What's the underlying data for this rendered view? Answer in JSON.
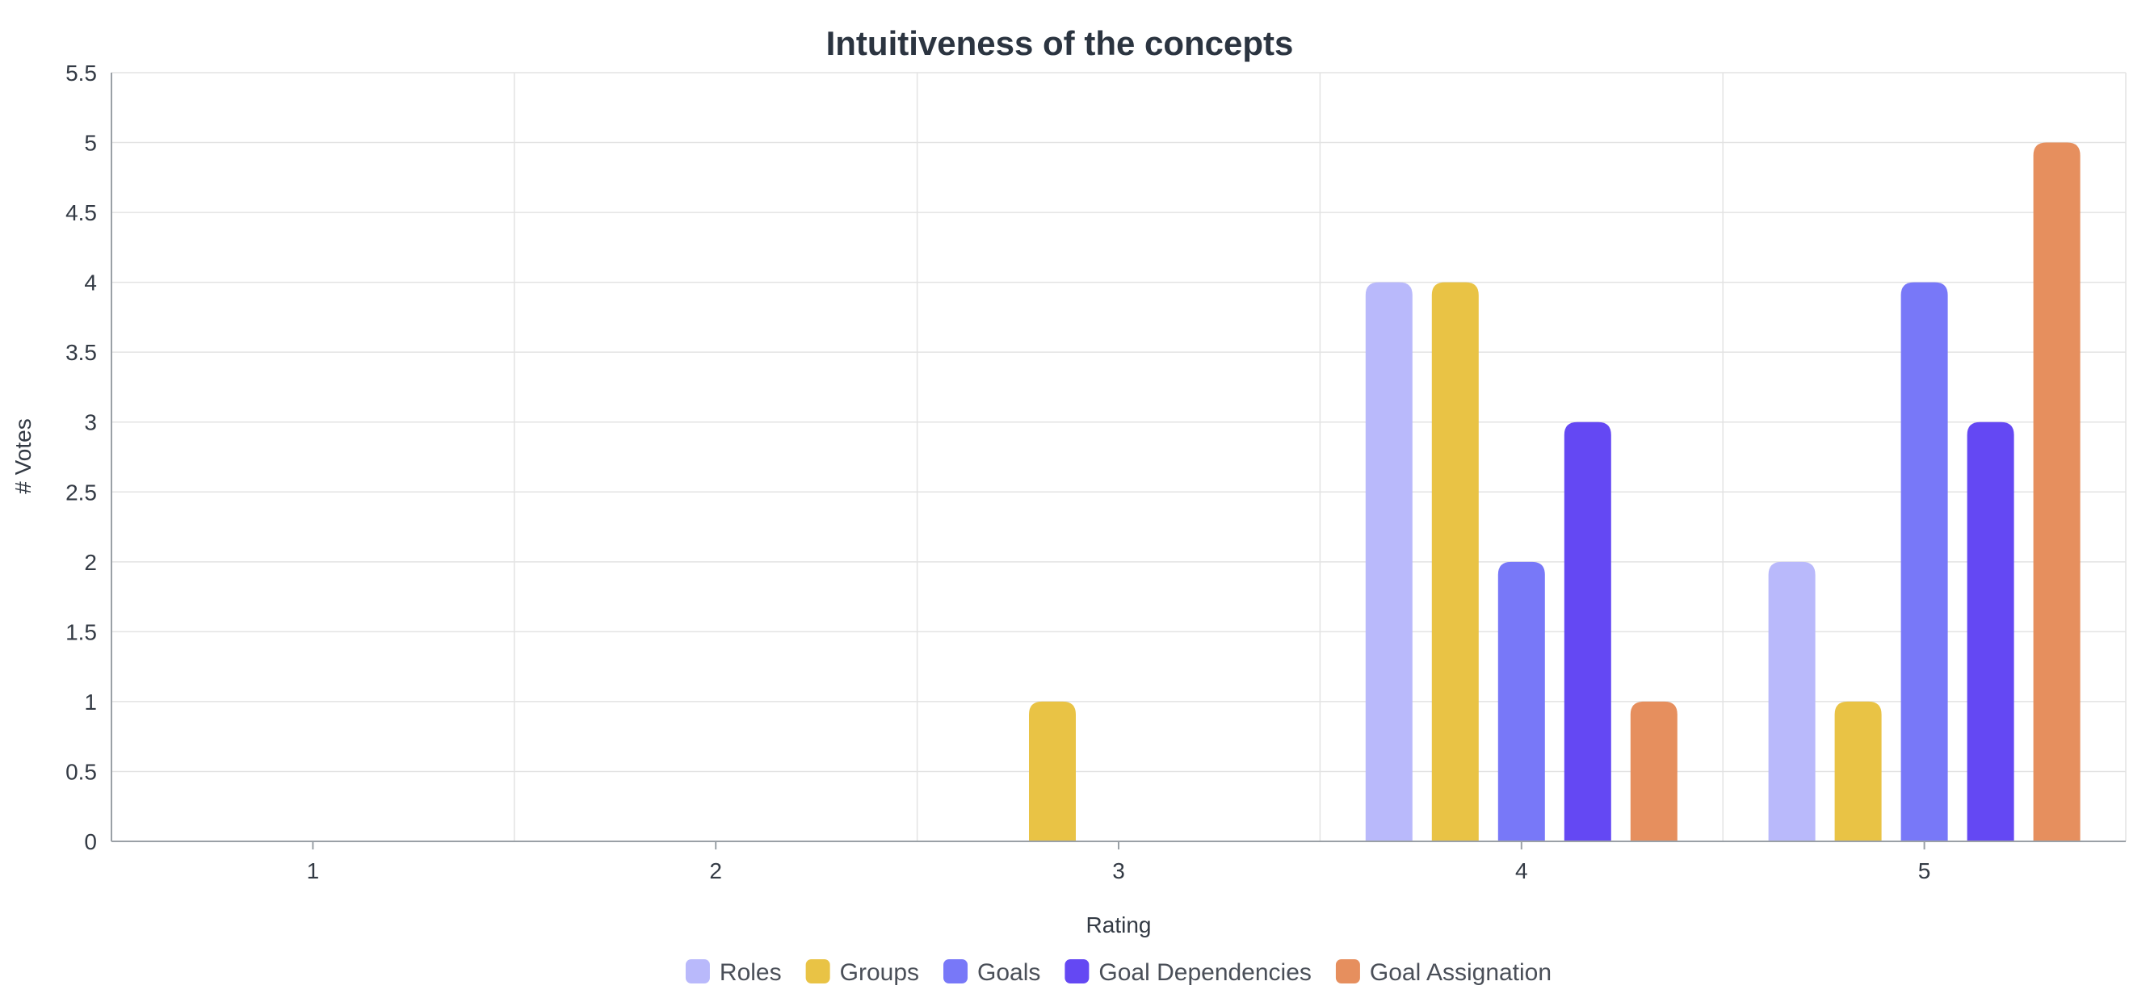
{
  "chart_data": {
    "type": "bar",
    "title": "Intuitiveness of the concepts",
    "xlabel": "Rating",
    "ylabel": "# Votes",
    "categories": [
      "1",
      "2",
      "3",
      "4",
      "5"
    ],
    "ylim": [
      0,
      5.5
    ],
    "yticks": [
      "0",
      "0.5",
      "1",
      "1.5",
      "2",
      "2.5",
      "3",
      "3.5",
      "4",
      "4.5",
      "5",
      "5.5"
    ],
    "grid": true,
    "legend_position": "bottom-center",
    "series": [
      {
        "name": "Roles",
        "color": "#b9b9fb",
        "values": [
          0,
          0,
          0,
          4,
          2
        ]
      },
      {
        "name": "Groups",
        "color": "#e9c345",
        "values": [
          0,
          0,
          1,
          4,
          1
        ]
      },
      {
        "name": "Goals",
        "color": "#7878f8",
        "values": [
          0,
          0,
          0,
          2,
          4
        ]
      },
      {
        "name": "Goal Dependencies",
        "color": "#6448f3",
        "values": [
          0,
          0,
          0,
          3,
          3
        ]
      },
      {
        "name": "Goal Assignation",
        "color": "#e68f5e",
        "values": [
          0,
          0,
          0,
          1,
          5
        ]
      }
    ]
  }
}
